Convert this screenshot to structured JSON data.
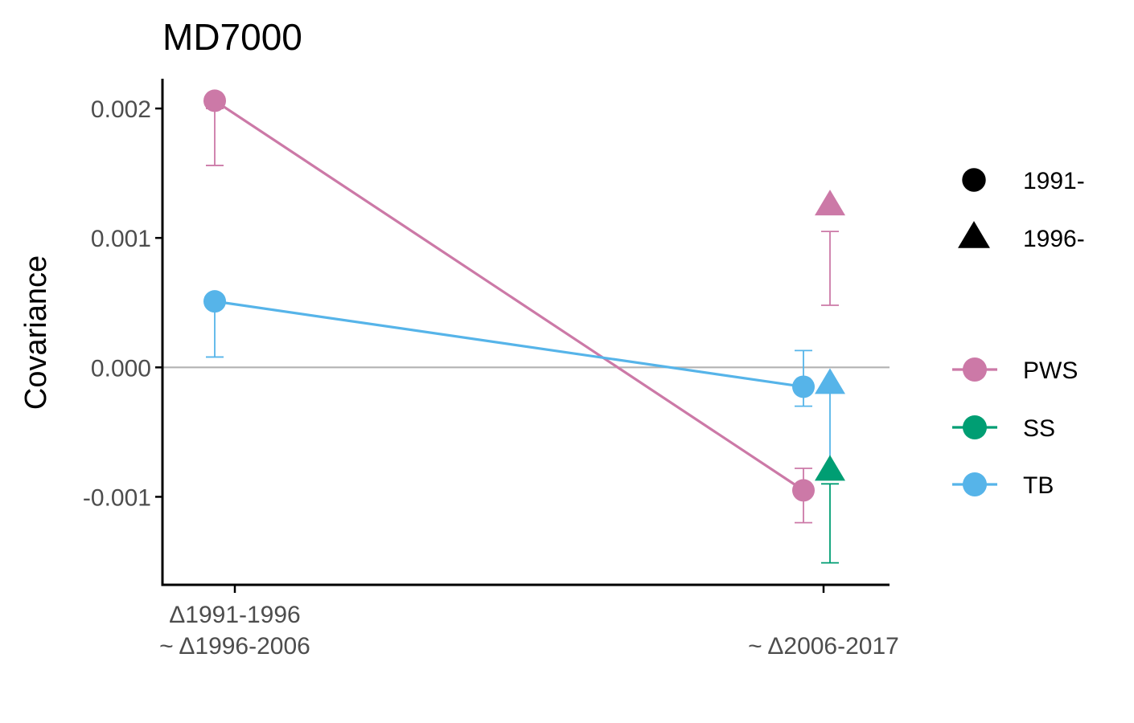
{
  "chart_data": {
    "type": "scatter",
    "title": "MD7000",
    "xlabel": "",
    "ylabel": "Covariance",
    "ylim": [
      -0.00168,
      0.00223
    ],
    "y_ticks": [
      0.002,
      0.001,
      0.0,
      -0.001
    ],
    "y_tick_labels": [
      "0.002",
      "0.001",
      "0.000",
      "-0.001"
    ],
    "categories": [
      "Δ1991-1996\n~ Δ1996-2006",
      "~ Δ2006-2017"
    ],
    "zero_line": true,
    "grid": false,
    "colors": {
      "PWS": "#CC79A7",
      "SS": "#009E73",
      "TB": "#56B4E9"
    },
    "shape_legend": [
      {
        "label": "1991-",
        "shape": "circle"
      },
      {
        "label": "1996-",
        "shape": "triangle"
      }
    ],
    "color_legend": [
      {
        "label": "PWS"
      },
      {
        "label": "SS"
      },
      {
        "label": "TB"
      }
    ],
    "legend_position": "right",
    "points": [
      {
        "id": "pws-1991-a",
        "population": "PWS",
        "start": "1991-",
        "category": 0,
        "y": 0.00206,
        "lo": 0.00156,
        "hi": 0.002
      },
      {
        "id": "tb-1991-a",
        "population": "TB",
        "start": "1991-",
        "category": 0,
        "y": 0.00051,
        "lo": 8e-05,
        "hi": 0.00055
      },
      {
        "id": "pws-1991-b",
        "population": "PWS",
        "start": "1991-",
        "category": 1,
        "y": -0.00095,
        "lo": -0.0012,
        "hi": -0.00078
      },
      {
        "id": "tb-1991-b",
        "population": "TB",
        "start": "1991-",
        "category": 1,
        "y": -0.00015,
        "lo": -0.0003,
        "hi": 0.00013
      },
      {
        "id": "pws-1996-b",
        "population": "PWS",
        "start": "1996-",
        "category": 1,
        "y": 0.00125,
        "lo": 0.00048,
        "hi": 0.00105
      },
      {
        "id": "ss-1996-b",
        "population": "SS",
        "start": "1996-",
        "category": 1,
        "y": -0.0008,
        "lo": -0.00151,
        "hi": -0.0009
      },
      {
        "id": "tb-1996-b",
        "population": "TB",
        "start": "1996-",
        "category": 1,
        "y": -0.00013,
        "lo": -0.00085,
        "hi": -0.00013
      }
    ],
    "connecting_lines": [
      {
        "population": "PWS",
        "from": "pws-1991-a",
        "to": "pws-1991-b"
      },
      {
        "population": "TB",
        "from": "tb-1991-a",
        "to": "tb-1991-b"
      }
    ]
  }
}
